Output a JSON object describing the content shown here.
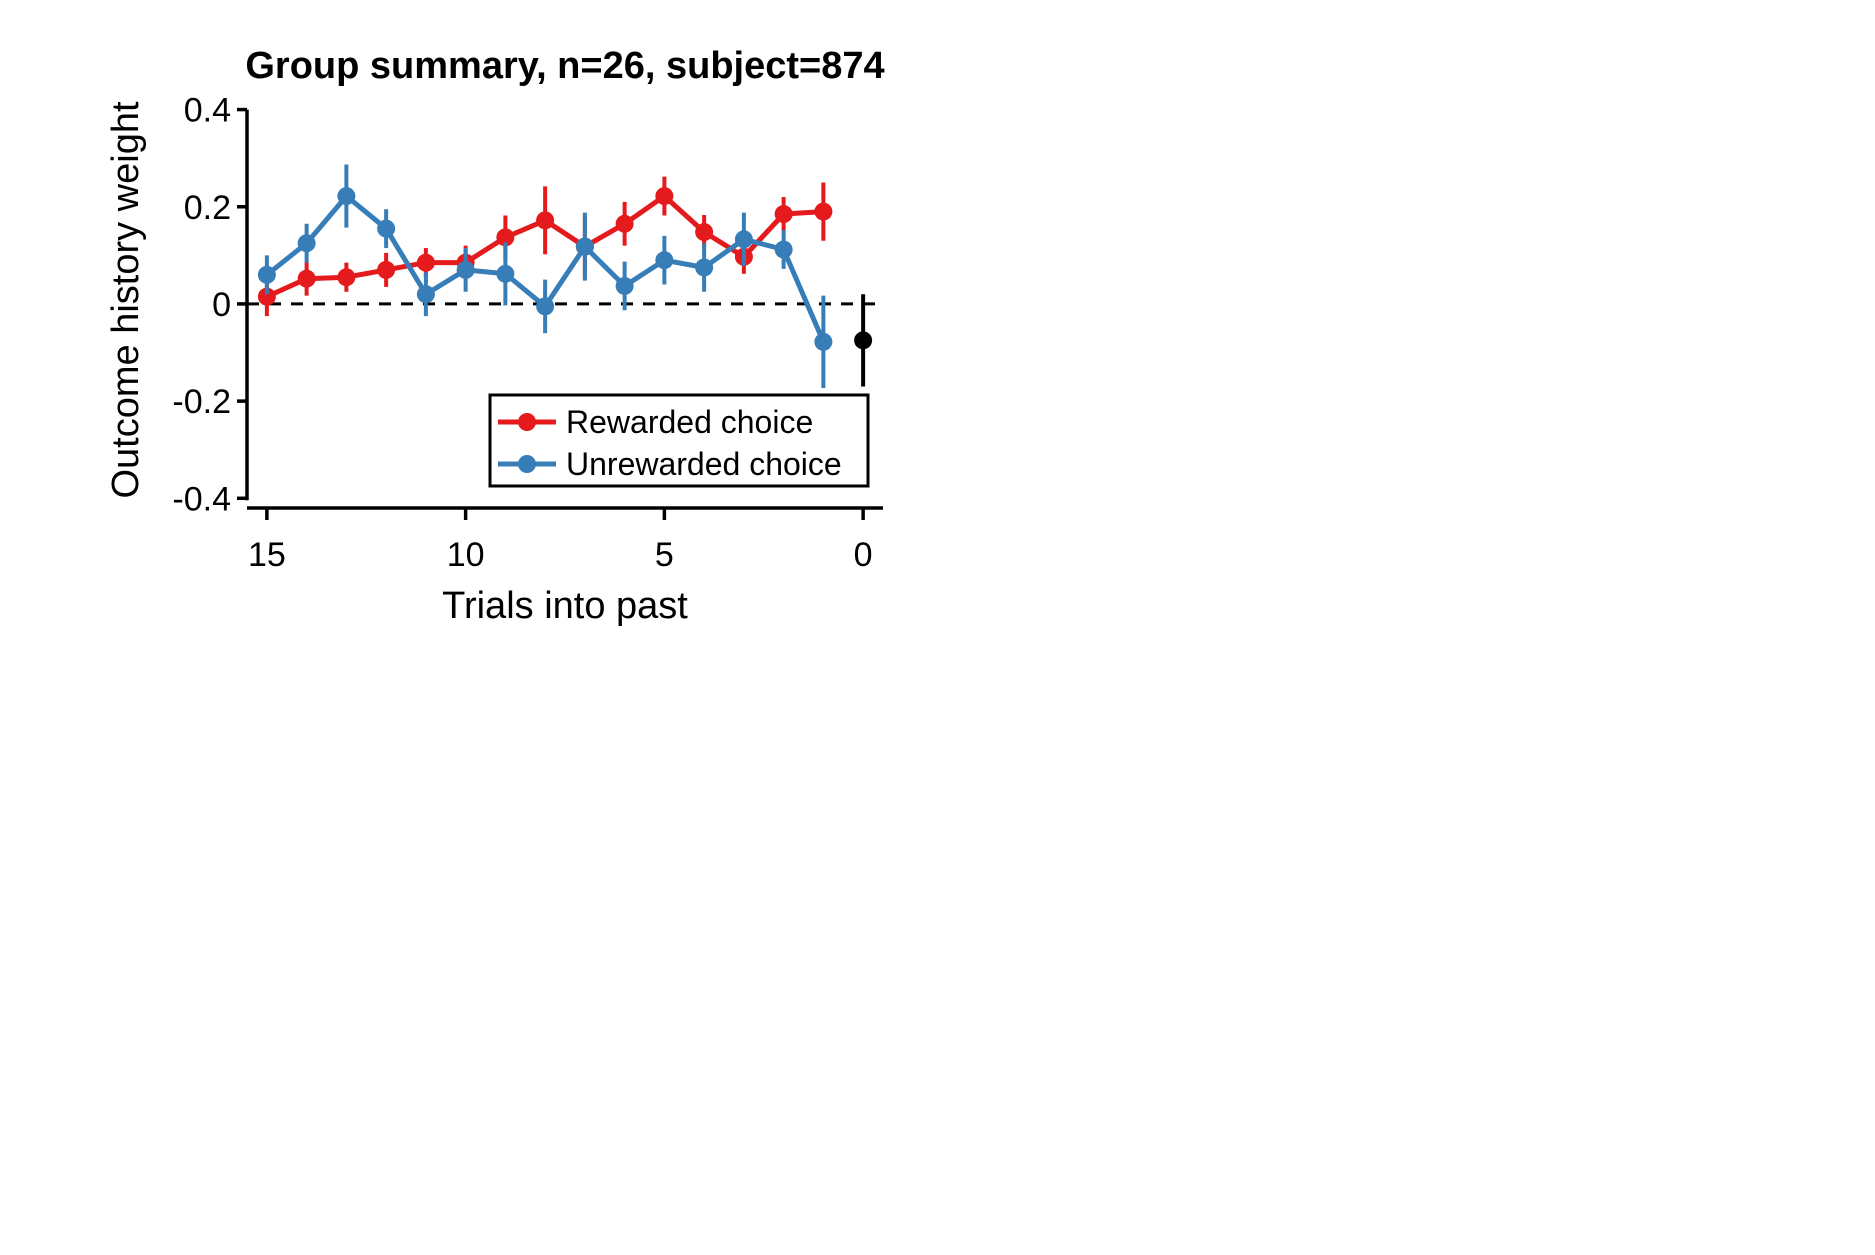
{
  "chart_data": {
    "type": "line",
    "title": "Group summary, n=26, subject=874",
    "xlabel": "Trials into past",
    "ylabel": "Outcome history weight",
    "xlim": [
      15.5,
      -0.5
    ],
    "ylim": [
      -0.42,
      0.43
    ],
    "x_reversed": true,
    "x_ticks": [
      15,
      10,
      5,
      0
    ],
    "x_tick_labels": [
      "15",
      "10",
      "5",
      "0"
    ],
    "y_ticks": [
      0.4,
      0.2,
      0,
      -0.2,
      -0.4
    ],
    "y_tick_labels": [
      "0.4",
      "0.2",
      "0",
      "-0.2",
      "-0.4"
    ],
    "zero_reference_line": true,
    "grid": false,
    "legend_position": "lower-right",
    "series": [
      {
        "name": "Rewarded choice",
        "color": "#e41a1c",
        "x": [
          15,
          14,
          13,
          12,
          11,
          10,
          9,
          8,
          7,
          6,
          5,
          4,
          3,
          2,
          1
        ],
        "y": [
          0.015,
          0.052,
          0.055,
          0.07,
          0.085,
          0.085,
          0.137,
          0.172,
          0.118,
          0.165,
          0.222,
          0.148,
          0.097,
          0.185,
          0.19
        ],
        "err": [
          0.04,
          0.035,
          0.03,
          0.035,
          0.03,
          0.035,
          0.045,
          0.07,
          0.065,
          0.045,
          0.04,
          0.035,
          0.035,
          0.035,
          0.06
        ]
      },
      {
        "name": "Unrewarded choice",
        "color": "#377eb8",
        "x": [
          15,
          14,
          13,
          12,
          11,
          10,
          9,
          8,
          7,
          6,
          5,
          4,
          3,
          2,
          1
        ],
        "y": [
          0.06,
          0.125,
          0.222,
          0.155,
          0.02,
          0.07,
          0.062,
          -0.005,
          0.118,
          0.037,
          0.09,
          0.075,
          0.133,
          0.112,
          -0.078
        ],
        "err": [
          0.04,
          0.04,
          0.065,
          0.04,
          0.045,
          0.045,
          0.065,
          0.055,
          0.07,
          0.05,
          0.05,
          0.05,
          0.055,
          0.04,
          0.095
        ]
      }
    ],
    "extra_points": [
      {
        "x": 0,
        "y": -0.075,
        "err": 0.095,
        "color": "#000000"
      }
    ]
  }
}
